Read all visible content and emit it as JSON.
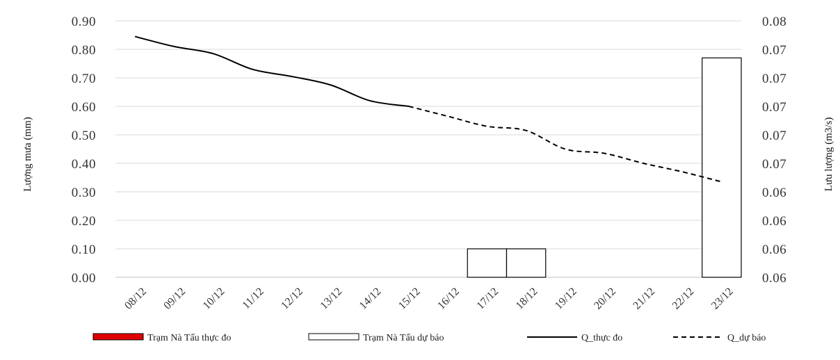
{
  "chart_data": {
    "type": "bar",
    "categories": [
      "08/12",
      "09/12",
      "10/12",
      "11/12",
      "12/12",
      "13/12",
      "14/12",
      "15/12",
      "16/12",
      "17/12",
      "18/12",
      "19/12",
      "20/12",
      "21/12",
      "22/12",
      "23/12"
    ],
    "y_left": {
      "label": "Lượng mưa (mm)",
      "ticks": [
        "0.00",
        "0.10",
        "0.20",
        "0.30",
        "0.40",
        "0.50",
        "0.60",
        "0.70",
        "0.80",
        "0.90"
      ],
      "range": [
        0,
        0.9
      ]
    },
    "y_right": {
      "label": "Lưu lượng (m3/s)",
      "ticks": [
        "0.06",
        "0.06",
        "0.06",
        "0.06",
        "0.07",
        "0.07",
        "0.07",
        "0.07",
        "0.07",
        "0.08"
      ]
    },
    "series": [
      {
        "name": "Trạm Nà Tấu thực đo",
        "kind": "bar",
        "axis": "left",
        "color": "#e00000",
        "values": [
          0,
          0,
          0,
          0,
          0,
          0,
          0,
          0,
          0,
          0,
          0,
          0,
          0,
          0,
          0,
          0
        ]
      },
      {
        "name": "Trạm Nà Tấu dự báo",
        "kind": "bar",
        "axis": "left",
        "color": "#ffffff",
        "values": [
          0,
          0,
          0,
          0,
          0,
          0,
          0,
          0,
          0,
          0.1,
          0.1,
          0,
          0,
          0,
          0,
          0.77
        ]
      },
      {
        "name": "Q_thực đo",
        "kind": "line",
        "axis": "left-scale",
        "style": "solid",
        "color": "#000000",
        "values": [
          0.845,
          0.81,
          0.785,
          0.73,
          0.705,
          0.675,
          0.62,
          0.6,
          null,
          null,
          null,
          null,
          null,
          null,
          null,
          null
        ]
      },
      {
        "name": "Q_dự báo",
        "kind": "line",
        "axis": "left-scale",
        "style": "dashed",
        "color": "#000000",
        "values": [
          null,
          null,
          null,
          null,
          null,
          null,
          null,
          0.6,
          0.565,
          0.53,
          0.515,
          0.45,
          0.435,
          0.4,
          0.37,
          0.335
        ]
      }
    ],
    "legend_position": "bottom",
    "grid": true
  }
}
